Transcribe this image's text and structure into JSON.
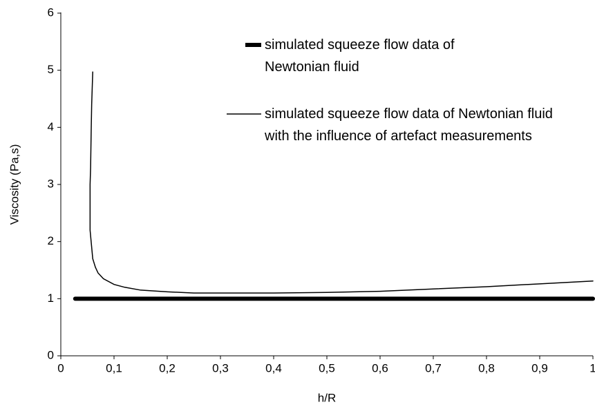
{
  "chart_data": {
    "type": "line",
    "xlabel": "h/R",
    "ylabel": "Viscosity (Pa,s)",
    "xlim": [
      0,
      1
    ],
    "ylim": [
      0,
      6
    ],
    "xticks": [
      0,
      {
        "value": 0.1,
        "label": "0,1"
      },
      {
        "value": 0.2,
        "label": "0,2"
      },
      {
        "value": 0.3,
        "label": "0,3"
      },
      {
        "value": 0.4,
        "label": "0,4"
      },
      {
        "value": 0.5,
        "label": "0,5"
      },
      {
        "value": 0.6,
        "label": "0,6"
      },
      {
        "value": 0.7,
        "label": "0,7"
      },
      {
        "value": 0.8,
        "label": "0,8"
      },
      {
        "value": 0.9,
        "label": "0,9"
      },
      1
    ],
    "yticks": [
      0,
      1,
      2,
      3,
      4,
      5,
      6
    ],
    "series": [
      {
        "name": "simulated squeeze flow data of Newtonian fluid",
        "color": "#000000",
        "width": 6,
        "x": [
          0.027,
          0.2,
          0.4,
          0.6,
          0.8,
          1.0
        ],
        "values": [
          1,
          1,
          1,
          1,
          1,
          1
        ]
      },
      {
        "name": "simulated squeeze flow data of Newtonian fluid with the influence of artefact measurements",
        "color": "#000000",
        "width": 1.5,
        "x": [
          0.06,
          0.058,
          0.057,
          0.056,
          0.055,
          0.055,
          0.057,
          0.06,
          0.065,
          0.07,
          0.08,
          0.1,
          0.12,
          0.15,
          0.2,
          0.25,
          0.3,
          0.4,
          0.5,
          0.6,
          0.7,
          0.8,
          0.9,
          1.0
        ],
        "values": [
          4.97,
          4.4,
          3.9,
          3.3,
          3.0,
          2.2,
          2.0,
          1.7,
          1.55,
          1.45,
          1.35,
          1.25,
          1.2,
          1.15,
          1.12,
          1.1,
          1.1,
          1.1,
          1.11,
          1.13,
          1.17,
          1.21,
          1.26,
          1.31
        ]
      }
    ]
  }
}
